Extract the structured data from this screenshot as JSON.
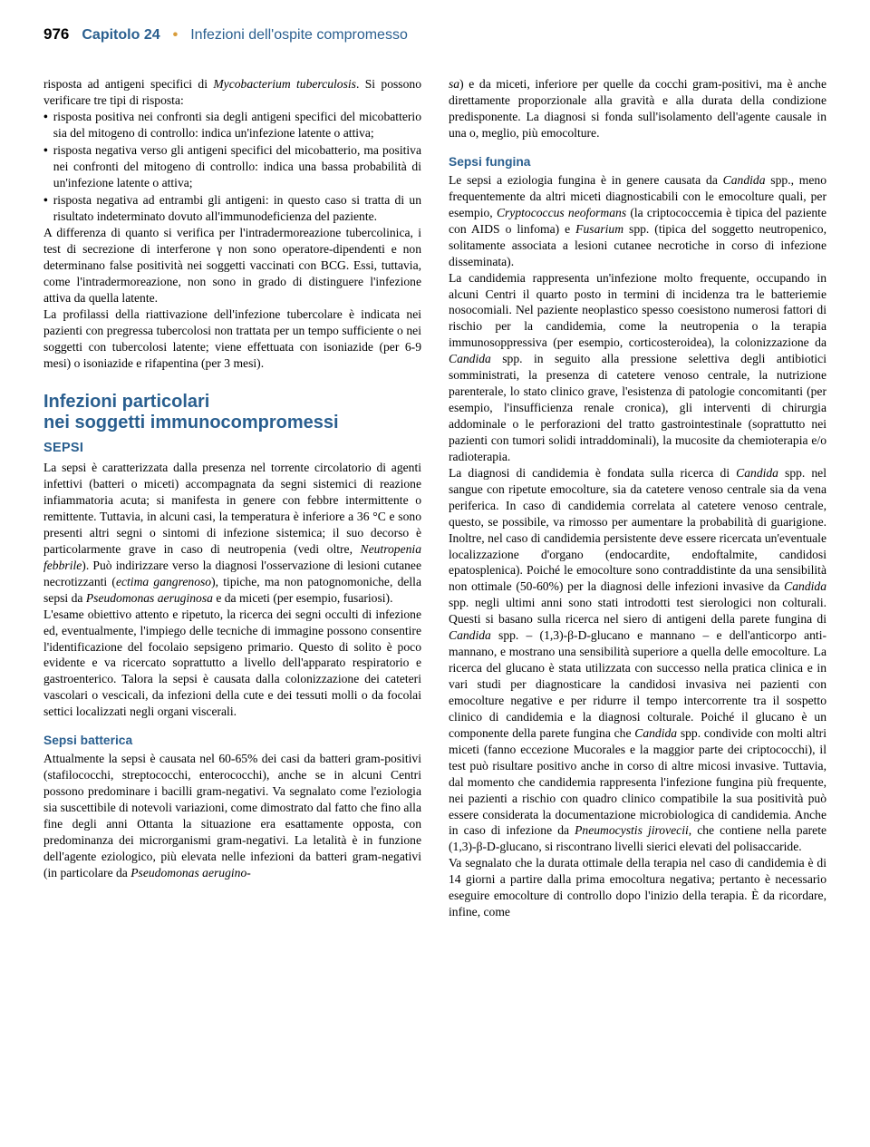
{
  "header": {
    "page_number": "976",
    "chapter_label": "Capitolo 24",
    "chapter_title": "Infezioni dell'ospite compromesso"
  },
  "colors": {
    "heading_blue": "#2a5f8f",
    "dot_gold": "#d89c3a",
    "text": "#000000",
    "background": "#ffffff"
  },
  "typography": {
    "body_fontsize_pt": 10.2,
    "heading_fontsize_pt": 15,
    "subsection_fontsize_pt": 11,
    "body_font": "Georgia, serif",
    "heading_font": "Helvetica Neue, sans-serif"
  },
  "left": {
    "intro": "risposta ad antigeni specifici di Mycobacterium tuberculosis. Si possono verificare tre tipi di risposta:",
    "bullets": [
      "risposta positiva nei confronti sia degli antigeni specifici del micobatterio sia del mitogeno di controllo: indica un'infezione latente o attiva;",
      "risposta negativa verso gli antigeni specifici del micobatterio, ma positiva nei confronti del mitogeno di controllo: indica una bassa probabilità di un'infezione latente o attiva;",
      "risposta negativa ad entrambi gli antigeni: in questo caso si tratta di un risultato indeterminato dovuto all'immunodeficienza del paziente."
    ],
    "para1": "A differenza di quanto si verifica per l'intradermoreazione tubercolinica, i test di secrezione di interferone γ non sono operatore-dipendenti e non determinano false positività nei soggetti vaccinati con BCG. Essi, tuttavia, come l'intradermoreazione, non sono in grado di distinguere l'infezione attiva da quella latente.",
    "para2": "La profilassi della riattivazione dell'infezione tubercolare è indicata nei pazienti con pregressa tubercolosi non trattata per un tempo sufficiente o nei soggetti con tubercolosi latente; viene effettuata con isoniazide (per 6-9 mesi) o isoniazide e rifapentina (per 3 mesi).",
    "section_title": "Infezioni particolari\nnei soggetti immunocompromessi",
    "subsection_sepsi": "SEPSI",
    "sepsi_para1": "La sepsi è caratterizzata dalla presenza nel torrente circolatorio di agenti infettivi (batteri o miceti) accompagnata da segni sistemici di reazione infiammatoria acuta; si manifesta in genere con febbre intermittente o remittente. Tuttavia, in alcuni casi, la temperatura è inferiore a 36 °C e sono presenti altri segni o sintomi di infezione sistemica; il suo decorso è particolarmente grave in caso di neutropenia (vedi oltre, Neutropenia febbrile). Può indirizzare verso la diagnosi l'osservazione di lesioni cutanee necrotizzanti (ectima gangrenoso), tipiche, ma non patognomoniche, della sepsi da Pseudomonas aeruginosa e da miceti (per esempio, fusariosi).",
    "sepsi_para2": "L'esame obiettivo attento e ripetuto, la ricerca dei segni occulti di infezione ed, eventualmente, l'impiego delle tecniche di immagine possono consentire l'identificazione del focolaio sepsigeno primario. Questo di solito è poco evidente e va ricercato soprattutto a livello dell'apparato respiratorio e gastroenterico. Talora la sepsi è causata dalla colonizzazione dei cateteri vascolari o vescicali, da infezioni della cute e dei tessuti molli o da focolai settici localizzati negli organi viscerali.",
    "subsub_batterica": "Sepsi batterica",
    "batterica_para": "Attualmente la sepsi è causata nel 60-65% dei casi da batteri gram-positivi (stafilococchi, streptococchi, enterococchi), anche se in alcuni Centri possono predominare i bacilli gram-negativi. Va segnalato come l'eziologia sia suscettibile di notevoli variazioni, come dimostrato dal fatto che fino alla fine degli anni Ottanta la situazione era esattamente opposta, con predominanza dei microrganismi gram-negativi. La letalità è in funzione dell'agente eziologico, più elevata nelle infezioni da batteri gram-negativi (in particolare da Pseudomonas aerugino-"
  },
  "right": {
    "cont_para": "sa) e da miceti, inferiore per quelle da cocchi gram-positivi, ma è anche direttamente proporzionale alla gravità e alla durata della condizione predisponente. La diagnosi si fonda sull'isolamento dell'agente causale in una o, meglio, più emocolture.",
    "subsub_fungina": "Sepsi fungina",
    "fungina_para1": "Le sepsi a eziologia fungina è in genere causata da Candida spp., meno frequentemente da altri miceti diagnosticabili con le emocolture quali, per esempio, Cryptococcus neoformans (la criptococcemia è tipica del paziente con AIDS o linfoma) e Fusarium spp. (tipica del soggetto neutropenico, solitamente associata a lesioni cutanee necrotiche in corso di infezione disseminata).",
    "fungina_para2": "La candidemia rappresenta un'infezione molto frequente, occupando in alcuni Centri il quarto posto in termini di incidenza tra le batteriemie nosocomiali. Nel paziente neoplastico spesso coesistono numerosi fattori di rischio per la candidemia, come la neutropenia o la terapia immunosoppressiva (per esempio, corticosteroidea), la colonizzazione da Candida spp. in seguito alla pressione selettiva degli antibiotici somministrati, la presenza di catetere venoso centrale, la nutrizione parenterale, lo stato clinico grave, l'esistenza di patologie concomitanti (per esempio, l'insufficienza renale cronica), gli interventi di chirurgia addominale o le perforazioni del tratto gastrointestinale (soprattutto nei pazienti con tumori solidi intraddominali), la mucosite da chemioterapia e/o radioterapia.",
    "fungina_para3": "La diagnosi di candidemia è fondata sulla ricerca di Candida spp. nel sangue con ripetute emocolture, sia da catetere venoso centrale sia da vena periferica. In caso di candidemia correlata al catetere venoso centrale, questo, se possibile, va rimosso per aumentare la probabilità di guarigione. Inoltre, nel caso di candidemia persistente deve essere ricercata un'eventuale localizzazione d'organo (endocardite, endoftalmite, candidosi epatosplenica). Poiché le emocolture sono contraddistinte da una sensibilità non ottimale (50-60%) per la diagnosi delle infezioni invasive da Candida spp. negli ultimi anni sono stati introdotti test sierologici non colturali. Questi si basano sulla ricerca nel siero di antigeni della parete fungina di Candida spp. – (1,3)-β-D-glucano e mannano – e dell'anticorpo anti-mannano, e mostrano una sensibilità superiore a quella delle emocolture. La ricerca del glucano è stata utilizzata con successo nella pratica clinica e in vari studi per diagnosticare la candidosi invasiva nei pazienti con emocolture negative e per ridurre il tempo intercorrente tra il sospetto clinico di candidemia e la diagnosi colturale. Poiché il glucano è un componente della parete fungina che Candida spp. condivide con molti altri miceti (fanno eccezione Mucorales e la maggior parte dei criptococchi), il test può risultare positivo anche in corso di altre micosi invasive. Tuttavia, dal momento che candidemia rappresenta l'infezione fungina più frequente, nei pazienti a rischio con quadro clinico compatibile la sua positività può essere considerata la documentazione microbiologica di candidemia. Anche in caso di infezione da Pneumocystis jirovecii, che contiene nella parete (1,3)-β-D-glucano, si riscontrano livelli sierici elevati del polisaccaride.",
    "fungina_para4": "Va segnalato che la durata ottimale della terapia nel caso di candidemia è di 14 giorni a partire dalla prima emocoltura negativa; pertanto è necessario eseguire emocolture di controllo dopo l'inizio della terapia. È da ricordare, infine, come"
  }
}
